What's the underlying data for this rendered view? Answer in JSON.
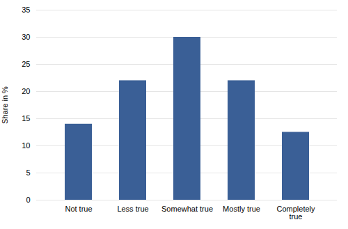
{
  "chart_data": {
    "type": "bar",
    "categories": [
      "Not true",
      "Less true",
      "Somewhat true",
      "Mostly true",
      "Completely\ntrue"
    ],
    "values": [
      14,
      22,
      30,
      22,
      12.5
    ],
    "color": "#3A5F96",
    "ylabel": "Share in %",
    "ylim": [
      0,
      35
    ],
    "yticks": [
      0,
      5,
      10,
      15,
      20,
      25,
      30,
      35
    ],
    "grid": true
  }
}
